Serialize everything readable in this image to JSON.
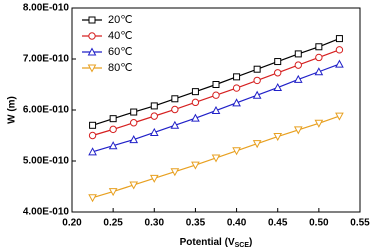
{
  "chart_data": {
    "type": "line",
    "y_label": "W (m)",
    "x_label": [
      "Potential (V",
      "SCE",
      ")"
    ],
    "x": [
      0.225,
      0.25,
      0.275,
      0.3,
      0.325,
      0.35,
      0.375,
      0.4,
      0.425,
      0.45,
      0.475,
      0.5,
      0.525
    ],
    "series": [
      {
        "name": "20℃",
        "color": "#000000",
        "marker": "square",
        "values": [
          5.7e-10,
          5.83e-10,
          5.96e-10,
          6.08e-10,
          6.22e-10,
          6.36e-10,
          6.5e-10,
          6.65e-10,
          6.8e-10,
          6.95e-10,
          7.1e-10,
          7.24e-10,
          7.4e-10
        ]
      },
      {
        "name": "40℃",
        "color": "#d62020",
        "marker": "circle",
        "values": [
          5.5e-10,
          5.62e-10,
          5.75e-10,
          5.88e-10,
          6.01e-10,
          6.15e-10,
          6.29e-10,
          6.43e-10,
          6.58e-10,
          6.73e-10,
          6.88e-10,
          7.03e-10,
          7.18e-10
        ]
      },
      {
        "name": "60℃",
        "color": "#2020c8",
        "marker": "triangle",
        "values": [
          5.18e-10,
          5.3e-10,
          5.42e-10,
          5.56e-10,
          5.7e-10,
          5.84e-10,
          5.99e-10,
          6.14e-10,
          6.29e-10,
          6.44e-10,
          6.6e-10,
          6.75e-10,
          6.9e-10
        ]
      },
      {
        "name": "80℃",
        "color": "#e8a020",
        "marker": "triangle-down",
        "values": [
          4.28e-10,
          4.4e-10,
          4.53e-10,
          4.66e-10,
          4.79e-10,
          4.92e-10,
          5.06e-10,
          5.2e-10,
          5.34e-10,
          5.48e-10,
          5.61e-10,
          5.74e-10,
          5.88e-10
        ]
      }
    ],
    "xlim": [
      0.2,
      0.55
    ],
    "xticks": [
      {
        "value": 0.2,
        "label": "0.20"
      },
      0.25,
      {
        "value": 0.3,
        "label": "0.30"
      },
      0.35,
      {
        "value": 0.4,
        "label": "0.40"
      },
      0.45,
      {
        "value": 0.5,
        "label": "0.50"
      },
      0.55
    ],
    "ylim": [
      4e-10,
      8e-10
    ],
    "yticks": [
      {
        "value": 4e-10,
        "label": "4.00E-010"
      },
      {
        "value": 5e-10,
        "label": "5.00E-010"
      },
      {
        "value": 6e-10,
        "label": "6.00E-010"
      },
      {
        "value": 7e-10,
        "label": "7.00E-010"
      },
      {
        "value": 8e-10,
        "label": "8.00E-010"
      }
    ],
    "legend": "upper-left"
  }
}
